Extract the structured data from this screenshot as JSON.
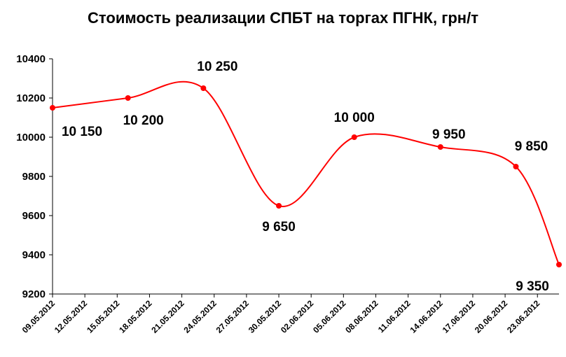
{
  "chart_data": {
    "type": "line",
    "title": "Стоимость реализации СПБТ на торгах ПГНК, грн/т",
    "xlabel": "",
    "ylabel": "",
    "ylim": [
      9200,
      10400
    ],
    "yticks": [
      9200,
      9400,
      9600,
      9800,
      10000,
      10200,
      10400
    ],
    "ytick_labels": [
      "9200",
      "9400",
      "9600",
      "9800",
      "10000",
      "10200",
      "10400"
    ],
    "xticks": [
      "09.05.2012",
      "12.05.2012",
      "15.05.2012",
      "18.05.2012",
      "21.05.2012",
      "24.05.2012",
      "27.05.2012",
      "30.05.2012",
      "02.06.2012",
      "05.06.2012",
      "08.06.2012",
      "11.06.2012",
      "14.06.2012",
      "17.06.2012",
      "20.06.2012",
      "23.06.2012"
    ],
    "x_range": [
      "09.05.2012",
      "25.06.2012"
    ],
    "grid": false,
    "legend": "none",
    "line_color": "#ff0000",
    "series": [
      {
        "x": [
          "09.05.2012",
          "16.05.2012",
          "23.05.2012",
          "30.05.2012",
          "06.06.2012",
          "14.06.2012",
          "21.06.2012",
          "25.06.2012"
        ],
        "values": [
          10150,
          10200,
          10250,
          9650,
          10000,
          9950,
          9850,
          9350
        ],
        "labels": [
          "10 150",
          "10 200",
          "10 250",
          "9 650",
          "10 000",
          "9 950",
          "9 850",
          "9 350"
        ]
      }
    ]
  }
}
